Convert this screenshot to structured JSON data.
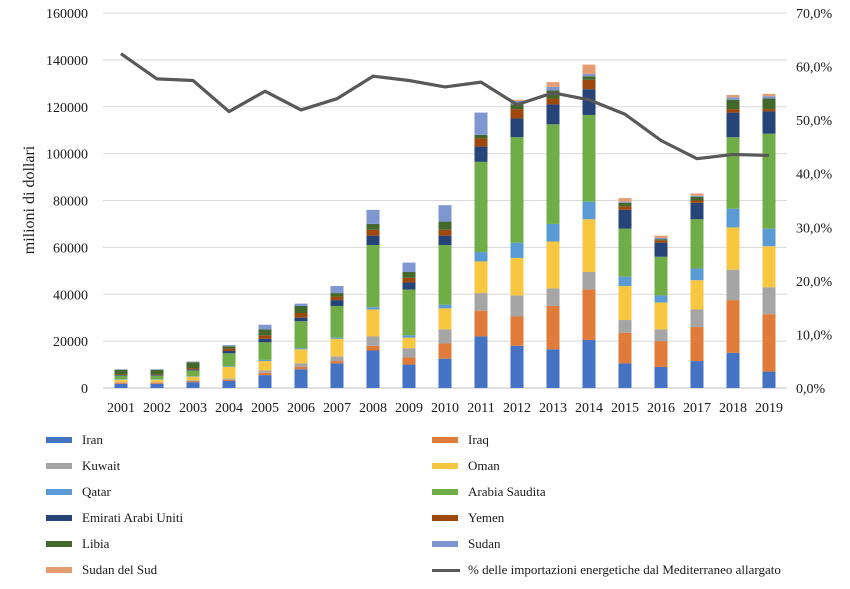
{
  "chart_data": {
    "type": "bar",
    "stacked": true,
    "categories": [
      "2001",
      "2002",
      "2003",
      "2004",
      "2005",
      "2006",
      "2007",
      "2008",
      "2009",
      "2010",
      "2011",
      "2012",
      "2013",
      "2014",
      "2015",
      "2016",
      "2017",
      "2018",
      "2019"
    ],
    "ylabel": "milioni di dollari",
    "ylim": [
      0,
      160000
    ],
    "yticks": [
      "0",
      "20000",
      "40000",
      "60000",
      "80000",
      "100000",
      "120000",
      "140000",
      "160000"
    ],
    "y2lim": [
      0,
      70
    ],
    "y2ticks": [
      "0,0%",
      "10,0%",
      "20,0%",
      "30,0%",
      "40,0%",
      "50,0%",
      "60,0%",
      "70,0%"
    ],
    "grid": true,
    "legend_position": "bottom",
    "series": [
      {
        "name": "Iran",
        "color": "#4472c4",
        "values": [
          1800,
          1800,
          2500,
          3000,
          5500,
          8000,
          10500,
          16000,
          10000,
          12500,
          22000,
          18000,
          16500,
          20500,
          10500,
          9000,
          11500,
          15000,
          7000
        ]
      },
      {
        "name": "Iraq",
        "color": "#e07b39",
        "values": [
          500,
          500,
          500,
          500,
          1000,
          1000,
          1000,
          2000,
          3000,
          6500,
          11000,
          12500,
          18500,
          21500,
          13000,
          11000,
          14500,
          22500,
          24500
        ]
      },
      {
        "name": "Kuwait",
        "color": "#a5a5a5",
        "values": [
          200,
          200,
          300,
          500,
          1000,
          1500,
          2000,
          4000,
          4000,
          6000,
          7500,
          9000,
          7500,
          7500,
          5500,
          5000,
          7500,
          13000,
          11500
        ]
      },
      {
        "name": "Oman",
        "color": "#f7c742",
        "values": [
          1000,
          1000,
          1500,
          5000,
          4000,
          6000,
          7500,
          11500,
          4500,
          9000,
          13500,
          16000,
          20000,
          22500,
          14500,
          11500,
          12500,
          18000,
          17500
        ]
      },
      {
        "name": "Qatar",
        "color": "#5b9bd5",
        "values": [
          200,
          200,
          200,
          300,
          500,
          500,
          500,
          1000,
          1000,
          1500,
          4000,
          6500,
          7500,
          7500,
          4000,
          3000,
          5000,
          8000,
          7500
        ]
      },
      {
        "name": "Arabia Saudita",
        "color": "#70ad47",
        "values": [
          1500,
          1500,
          2500,
          5500,
          7500,
          11500,
          13500,
          26500,
          19500,
          25500,
          38500,
          45000,
          42500,
          37000,
          20500,
          16500,
          21000,
          30500,
          40500
        ]
      },
      {
        "name": "Emirati Arabi Uniti",
        "color": "#264478",
        "values": [
          300,
          300,
          500,
          1000,
          1500,
          1500,
          2500,
          4000,
          3000,
          4000,
          6500,
          8000,
          8500,
          11000,
          8000,
          6000,
          7000,
          10500,
          9500
        ]
      },
      {
        "name": "Yemen",
        "color": "#9e480e",
        "values": [
          300,
          300,
          500,
          1000,
          1500,
          2000,
          1500,
          2500,
          2000,
          2500,
          3500,
          4000,
          2500,
          4000,
          1500,
          1000,
          1000,
          1500,
          1000
        ]
      },
      {
        "name": "Libia",
        "color": "#43682b",
        "values": [
          2000,
          2000,
          2500,
          1000,
          2500,
          3000,
          1500,
          2500,
          2500,
          3500,
          1500,
          2000,
          3500,
          1500,
          1500,
          500,
          1500,
          4000,
          4500
        ]
      },
      {
        "name": "Sudan",
        "color": "#7e97d1",
        "values": [
          200,
          200,
          300,
          500,
          2000,
          1000,
          3000,
          6000,
          4000,
          7000,
          9500,
          1500,
          1500,
          1000,
          500,
          500,
          500,
          1000,
          1000
        ]
      },
      {
        "name": "Sudan del Sud",
        "color": "#e39d70",
        "values": [
          0,
          0,
          0,
          0,
          0,
          0,
          0,
          0,
          0,
          0,
          0,
          500,
          2000,
          4000,
          1500,
          1000,
          1000,
          1000,
          1000
        ]
      }
    ],
    "line": {
      "name": "% delle importazioni energetiche dal Mediterraneo allargato",
      "color": "#595959",
      "axis": "right",
      "values": [
        62.4,
        57.7,
        57.4,
        51.6,
        55.4,
        51.9,
        54.0,
        58.2,
        57.4,
        56.2,
        57.1,
        52.9,
        55.1,
        53.8,
        51.1,
        46.2,
        42.8,
        43.6,
        43.4
      ]
    }
  }
}
